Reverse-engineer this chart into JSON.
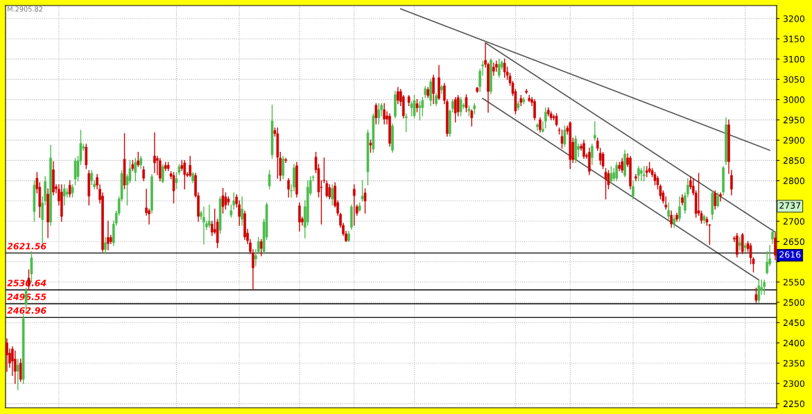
{
  "chart_data": {
    "type": "candlestick",
    "categories": [
      null,
      null,
      null,
      null,
      null,
      null,
      null,
      null,
      null,
      null,
      null,
      null,
      null,
      null,
      null,
      null,
      null,
      null,
      null,
      null,
      null,
      null,
      null,
      null,
      null,
      null,
      null,
      null,
      null,
      null,
      null,
      null,
      null,
      null,
      null,
      null,
      null,
      null,
      null,
      null,
      null,
      null,
      null,
      null,
      null,
      null,
      null,
      null,
      null,
      null,
      null,
      null,
      null,
      null,
      null,
      null,
      null,
      null,
      null,
      null,
      null,
      null,
      null,
      null,
      null,
      null,
      null,
      null,
      null,
      null,
      null,
      null,
      null,
      null,
      null,
      null,
      null,
      null,
      null,
      null,
      null,
      null,
      null,
      null,
      null,
      null,
      null,
      null,
      null,
      null,
      null,
      null,
      null,
      null,
      null,
      null,
      null,
      null,
      null,
      null,
      null,
      null,
      null,
      null,
      null,
      null,
      null,
      null,
      null,
      null,
      null,
      null,
      null,
      null,
      null,
      null,
      null,
      null,
      null,
      null,
      null,
      null,
      null,
      null,
      null,
      null,
      null,
      null,
      null,
      null,
      null,
      null,
      null,
      null,
      null,
      null,
      null,
      null,
      null,
      null,
      null,
      null,
      null,
      null,
      null,
      null,
      null,
      null,
      null,
      null,
      null,
      null,
      null,
      null,
      null,
      null,
      null,
      null,
      null,
      null,
      null,
      null,
      null,
      null,
      null,
      null,
      null,
      null,
      null,
      null,
      null,
      null,
      null,
      null,
      null,
      null,
      null,
      null,
      null,
      null,
      null,
      null,
      null,
      null,
      null,
      null,
      null,
      null,
      null,
      null,
      null,
      null,
      null,
      null,
      null,
      null,
      null,
      null,
      null,
      null,
      null,
      null,
      null,
      null,
      null,
      null,
      null,
      null,
      null,
      null,
      null,
      null,
      null,
      null,
      null,
      null,
      null,
      null,
      null,
      null,
      null,
      null,
      null,
      null,
      null,
      null,
      null,
      null,
      null,
      null,
      null,
      null,
      null,
      null,
      null,
      null,
      null,
      null,
      null,
      null,
      null,
      null,
      null,
      null,
      null,
      null,
      null,
      null,
      null,
      null,
      null,
      null,
      null,
      null,
      null,
      null,
      null,
      null,
      null,
      null,
      null,
      null,
      null,
      null,
      null,
      null,
      null,
      null,
      null,
      null,
      null,
      null,
      null,
      null,
      null,
      null,
      null,
      null,
      null,
      null,
      null,
      null
    ],
    "ohlc": [
      [
        2400,
        2410,
        2330,
        2370
      ],
      [
        2375,
        2385,
        2340,
        2350
      ],
      [
        2385,
        2390,
        2320,
        2355
      ],
      [
        2360,
        2380,
        2300,
        2330
      ],
      [
        2330,
        2360,
        2285,
        2345
      ],
      [
        2350,
        2360,
        2305,
        2310
      ],
      [
        2310,
        2470,
        2300,
        2460
      ],
      [
        2495,
        2535,
        2480,
        2530
      ],
      [
        2560,
        2580,
        2530,
        2540
      ],
      [
        2570,
        2625,
        2550,
        2610
      ],
      [
        2724,
        2800,
        2700,
        2789
      ],
      [
        2806,
        2820,
        2770,
        2780
      ],
      [
        2784,
        2795,
        2710,
        2736
      ],
      [
        2704,
        2760,
        2647,
        2745
      ],
      [
        2750,
        2810,
        2740,
        2798
      ],
      [
        2767,
        2780,
        2660,
        2698
      ],
      [
        2698,
        2887,
        2690,
        2856
      ],
      [
        2827,
        2847,
        2765,
        2772
      ],
      [
        2785,
        2790,
        2770,
        2780
      ],
      [
        2779,
        2790,
        2740,
        2750
      ],
      [
        2772,
        2790,
        2700,
        2712
      ],
      [
        2762,
        2790,
        2740,
        2780
      ],
      [
        2767,
        2780,
        2760,
        2772
      ],
      [
        2789,
        2800,
        2760,
        2767
      ],
      [
        2770,
        2790,
        2760,
        2784
      ],
      [
        2804,
        2855,
        2790,
        2849
      ],
      [
        2810,
        2860,
        2800,
        2849
      ],
      [
        2849,
        2924,
        2840,
        2892
      ],
      [
        2880,
        2890,
        2875,
        2884
      ],
      [
        2883,
        2890,
        2830,
        2839
      ],
      [
        2818,
        2825,
        2740,
        2762
      ],
      [
        2800,
        2825,
        2790,
        2818
      ],
      [
        2785,
        2800,
        2780,
        2792
      ],
      [
        2808,
        2815,
        2780,
        2789
      ],
      [
        2779,
        2790,
        2745,
        2753
      ],
      [
        2762,
        2770,
        2625,
        2630
      ],
      [
        2630,
        2660,
        2620,
        2647
      ],
      [
        2660,
        2700,
        2630,
        2645
      ],
      [
        2660,
        2665,
        2645,
        2650
      ],
      [
        2647,
        2700,
        2640,
        2693
      ],
      [
        2695,
        2725,
        2690,
        2720
      ],
      [
        2720,
        2760,
        2715,
        2755
      ],
      [
        2755,
        2825,
        2750,
        2818
      ],
      [
        2853,
        2916,
        2780,
        2789
      ],
      [
        2790,
        2815,
        2740,
        2810
      ],
      [
        2800,
        2850,
        2795,
        2830
      ],
      [
        2840,
        2850,
        2825,
        2830
      ],
      [
        2820,
        2855,
        2800,
        2845
      ],
      [
        2849,
        2870,
        2835,
        2839
      ],
      [
        2839,
        2860,
        2830,
        2855
      ],
      [
        2827,
        2835,
        2800,
        2806
      ],
      [
        2733,
        2779,
        2715,
        2721
      ],
      [
        2726,
        2730,
        2693,
        2718
      ],
      [
        2727,
        2815,
        2720,
        2810
      ],
      [
        2861,
        2918,
        2820,
        2844
      ],
      [
        2855,
        2860,
        2815,
        2850
      ],
      [
        2849,
        2855,
        2800,
        2806
      ],
      [
        2798,
        2840,
        2795,
        2835
      ],
      [
        2838,
        2845,
        2825,
        2830
      ],
      [
        2838,
        2845,
        2825,
        2830
      ],
      [
        2817,
        2822,
        2805,
        2811
      ],
      [
        2813,
        2820,
        2745,
        2775
      ],
      [
        2795,
        2820,
        2780,
        2805
      ],
      [
        2821,
        2840,
        2815,
        2835
      ],
      [
        2838,
        2850,
        2825,
        2830
      ],
      [
        2844,
        2850,
        2780,
        2815
      ],
      [
        2816,
        2820,
        2810,
        2813
      ],
      [
        2838,
        2860,
        2810,
        2813
      ],
      [
        2800,
        2820,
        2795,
        2817
      ],
      [
        2813,
        2818,
        2760,
        2763
      ],
      [
        2763,
        2770,
        2700,
        2712
      ],
      [
        2712,
        2725,
        2705,
        2721
      ],
      [
        2698,
        2735,
        2644,
        2710
      ],
      [
        2686,
        2700,
        2680,
        2694
      ],
      [
        2690,
        2740,
        2685,
        2700
      ],
      [
        2693,
        2700,
        2665,
        2673
      ],
      [
        2680,
        2730,
        2670,
        2673
      ],
      [
        2698,
        2705,
        2635,
        2647
      ],
      [
        2678,
        2760,
        2670,
        2755
      ],
      [
        2763,
        2781,
        2720,
        2736
      ],
      [
        2760,
        2770,
        2730,
        2740
      ],
      [
        2755,
        2760,
        2740,
        2747
      ],
      [
        2715,
        2740,
        2710,
        2726
      ],
      [
        2740,
        2770,
        2730,
        2750
      ],
      [
        2760,
        2765,
        2735,
        2743
      ],
      [
        2741,
        2750,
        2690,
        2712
      ],
      [
        2705,
        2760,
        2690,
        2730
      ],
      [
        2719,
        2725,
        2655,
        2661
      ],
      [
        2671,
        2680,
        2645,
        2652
      ],
      [
        2647,
        2655,
        2620,
        2625
      ],
      [
        2621,
        2630,
        2532,
        2585
      ],
      [
        2607,
        2630,
        2590,
        2615
      ],
      [
        2625,
        2660,
        2620,
        2650
      ],
      [
        2650,
        2655,
        2615,
        2633
      ],
      [
        2625,
        2705,
        2620,
        2698
      ],
      [
        2661,
        2745,
        2655,
        2741
      ],
      [
        2787,
        2825,
        2780,
        2815
      ],
      [
        2864,
        2986,
        2855,
        2947
      ],
      [
        2924,
        2930,
        2910,
        2916
      ],
      [
        2916,
        2930,
        2806,
        2858
      ],
      [
        2856,
        2870,
        2800,
        2813
      ],
      [
        2813,
        2860,
        2805,
        2854
      ],
      [
        2852,
        2855,
        2845,
        2850
      ],
      [
        2801,
        2805,
        2760,
        2779
      ],
      [
        2775,
        2790,
        2760,
        2776
      ],
      [
        2784,
        2840,
        2775,
        2832
      ],
      [
        2837,
        2845,
        2760,
        2767
      ],
      [
        2738,
        2745,
        2676,
        2698
      ],
      [
        2706,
        2710,
        2690,
        2698
      ],
      [
        2685,
        2750,
        2659,
        2736
      ],
      [
        2698,
        2800,
        2690,
        2784
      ],
      [
        2769,
        2810,
        2765,
        2801
      ],
      [
        2808,
        2812,
        2800,
        2809
      ],
      [
        2858,
        2870,
        2820,
        2827
      ],
      [
        2830,
        2840,
        2760,
        2772
      ],
      [
        2784,
        2800,
        2693,
        2783
      ],
      [
        2801,
        2856,
        2795,
        2800
      ],
      [
        2793,
        2800,
        2760,
        2763
      ],
      [
        2783,
        2790,
        2755,
        2760
      ],
      [
        2755,
        2790,
        2740,
        2781
      ],
      [
        2787,
        2795,
        2735,
        2738
      ],
      [
        2746,
        2750,
        2715,
        2720
      ],
      [
        2717,
        2720,
        2685,
        2690
      ],
      [
        2690,
        2695,
        2665,
        2669
      ],
      [
        2669,
        2675,
        2650,
        2652
      ],
      [
        2652,
        2675,
        2650,
        2669
      ],
      [
        2685,
        2740,
        2680,
        2736
      ],
      [
        2779,
        2790,
        2690,
        2763
      ],
      [
        2736,
        2740,
        2715,
        2720
      ],
      [
        2727,
        2745,
        2725,
        2738
      ],
      [
        2755,
        2800,
        2750,
        2762
      ],
      [
        2770,
        2780,
        2720,
        2750
      ],
      [
        2822,
        2925,
        2790,
        2918
      ],
      [
        2893,
        2900,
        2870,
        2888
      ],
      [
        2878,
        2965,
        2870,
        2960
      ],
      [
        2986,
        2990,
        2940,
        2955
      ],
      [
        2955,
        2990,
        2940,
        2975
      ],
      [
        2975,
        2990,
        2960,
        2986
      ],
      [
        2975,
        2990,
        2940,
        2952
      ],
      [
        2960,
        2970,
        2940,
        2952
      ],
      [
        2959,
        2965,
        2885,
        2892
      ],
      [
        2875,
        2940,
        2870,
        2935
      ],
      [
        2959,
        3020,
        2955,
        3012
      ],
      [
        3020,
        3030,
        2990,
        2998
      ],
      [
        3020,
        3025,
        2985,
        2995
      ],
      [
        3007,
        3010,
        2955,
        2960
      ],
      [
        2955,
        2965,
        2921,
        2958
      ],
      [
        3007,
        3010,
        2985,
        2993
      ],
      [
        2980,
        2995,
        2960,
        2990
      ],
      [
        2960,
        3010,
        2955,
        2998
      ],
      [
        2990,
        3000,
        2970,
        2980
      ],
      [
        2980,
        2995,
        2950,
        2985
      ],
      [
        2980,
        3005,
        2960,
        2998
      ],
      [
        3012,
        3032,
        3005,
        3027
      ],
      [
        3025,
        3030,
        3005,
        3010
      ],
      [
        2998,
        3050,
        2985,
        3044
      ],
      [
        3054,
        3060,
        2990,
        3015
      ],
      [
        2990,
        3015,
        2985,
        3010
      ],
      [
        3054,
        3084,
        3000,
        3003
      ],
      [
        3024,
        3035,
        3015,
        3032
      ],
      [
        3034,
        3040,
        2990,
        2998
      ],
      [
        2995,
        3000,
        2910,
        2916
      ],
      [
        2916,
        2975,
        2910,
        2972
      ],
      [
        2978,
        3000,
        2970,
        2995
      ],
      [
        3000,
        3005,
        2945,
        2967
      ],
      [
        3005,
        3010,
        2960,
        2970
      ],
      [
        2970,
        3005,
        2960,
        3000
      ],
      [
        2983,
        2990,
        2978,
        2986
      ],
      [
        3005,
        3012,
        2970,
        2980
      ],
      [
        2972,
        2985,
        2960,
        2977
      ],
      [
        2972,
        2975,
        2935,
        2955
      ],
      [
        2977,
        2990,
        2965,
        2985
      ],
      [
        3029,
        3030,
        3018,
        3020
      ],
      [
        3032,
        3075,
        3020,
        3070
      ],
      [
        3083,
        3095,
        3060,
        3086
      ],
      [
        3097,
        3138,
        3080,
        3087
      ],
      [
        3087,
        3090,
        2969,
        3020
      ],
      [
        3020,
        3100,
        3015,
        3097
      ],
      [
        3080,
        3090,
        3060,
        3070
      ],
      [
        3087,
        3095,
        3070,
        3080
      ],
      [
        3060,
        3100,
        3055,
        3087
      ],
      [
        3080,
        3095,
        3075,
        3092
      ],
      [
        3090,
        3100,
        3055,
        3068
      ],
      [
        3068,
        3080,
        3050,
        3060
      ],
      [
        3058,
        3065,
        3035,
        3041
      ],
      [
        3041,
        3045,
        3010,
        3015
      ],
      [
        3020,
        3025,
        2965,
        2972
      ],
      [
        2980,
        2995,
        2975,
        2990
      ],
      [
        3003,
        3010,
        2985,
        2993
      ],
      [
        2995,
        3005,
        2990,
        3000
      ],
      [
        3021,
        3025,
        3015,
        3018
      ],
      [
        3003,
        3010,
        2995,
        2998
      ],
      [
        3000,
        3005,
        2985,
        2993
      ],
      [
        2995,
        3000,
        2950,
        2955
      ],
      [
        2933,
        2940,
        2925,
        2938
      ],
      [
        2950,
        2955,
        2920,
        2926
      ],
      [
        2922,
        2945,
        2920,
        2927
      ],
      [
        2947,
        2980,
        2930,
        2969
      ],
      [
        2974,
        2980,
        2960,
        2965
      ],
      [
        2965,
        2970,
        2950,
        2955
      ],
      [
        2958,
        2962,
        2950,
        2955
      ],
      [
        2959,
        2965,
        2935,
        2938
      ],
      [
        2925,
        2930,
        2915,
        2924
      ],
      [
        2909,
        2925,
        2880,
        2892
      ],
      [
        2890,
        2935,
        2885,
        2925
      ],
      [
        2930,
        2935,
        2915,
        2922
      ],
      [
        2943,
        2945,
        2830,
        2852
      ],
      [
        2895,
        2905,
        2845,
        2852
      ],
      [
        2852,
        2910,
        2845,
        2903
      ],
      [
        2877,
        2890,
        2860,
        2885
      ],
      [
        2885,
        2890,
        2875,
        2880
      ],
      [
        2892,
        2900,
        2855,
        2860
      ],
      [
        2862,
        2866,
        2855,
        2860
      ],
      [
        2870,
        2880,
        2815,
        2823
      ],
      [
        2857,
        2890,
        2840,
        2885
      ],
      [
        2905,
        2945,
        2900,
        2912
      ],
      [
        2898,
        2905,
        2875,
        2880
      ],
      [
        2868,
        2880,
        2840,
        2850
      ],
      [
        2866,
        2870,
        2830,
        2836
      ],
      [
        2821,
        2830,
        2755,
        2804
      ],
      [
        2818,
        2825,
        2780,
        2790
      ],
      [
        2800,
        2835,
        2795,
        2818
      ],
      [
        2806,
        2830,
        2800,
        2820
      ],
      [
        2806,
        2845,
        2800,
        2838
      ],
      [
        2838,
        2845,
        2825,
        2830
      ],
      [
        2847,
        2855,
        2820,
        2826
      ],
      [
        2813,
        2875,
        2810,
        2866
      ],
      [
        2856,
        2866,
        2835,
        2840
      ],
      [
        2856,
        2860,
        2780,
        2787
      ],
      [
        2762,
        2800,
        2755,
        2786
      ],
      [
        2810,
        2815,
        2800,
        2806
      ],
      [
        2813,
        2835,
        2800,
        2830
      ],
      [
        2818,
        2830,
        2800,
        2825
      ],
      [
        2812,
        2835,
        2800,
        2815
      ],
      [
        2825,
        2835,
        2810,
        2820
      ],
      [
        2830,
        2845,
        2820,
        2823
      ],
      [
        2825,
        2830,
        2810,
        2815
      ],
      [
        2815,
        2820,
        2790,
        2800
      ],
      [
        2806,
        2810,
        2780,
        2790
      ],
      [
        2787,
        2790,
        2755,
        2763
      ],
      [
        2770,
        2775,
        2745,
        2750
      ],
      [
        2740,
        2760,
        2730,
        2735
      ],
      [
        2712,
        2745,
        2705,
        2727
      ],
      [
        2715,
        2725,
        2685,
        2693
      ],
      [
        2693,
        2715,
        2685,
        2706
      ],
      [
        2715,
        2720,
        2700,
        2705
      ],
      [
        2707,
        2760,
        2700,
        2736
      ],
      [
        2758,
        2765,
        2740,
        2746
      ],
      [
        2727,
        2770,
        2720,
        2763
      ],
      [
        2767,
        2805,
        2760,
        2789
      ],
      [
        2800,
        2810,
        2780,
        2785
      ],
      [
        2787,
        2805,
        2765,
        2770
      ],
      [
        2770,
        2775,
        2710,
        2719
      ],
      [
        2726,
        2818,
        2715,
        2720
      ],
      [
        2719,
        2725,
        2695,
        2702
      ],
      [
        2702,
        2715,
        2695,
        2712
      ],
      [
        2705,
        2710,
        2690,
        2698
      ],
      [
        2691,
        2692,
        2643,
        2690
      ],
      [
        2717,
        2775,
        2705,
        2769
      ],
      [
        2769,
        2775,
        2730,
        2738
      ],
      [
        2738,
        2770,
        2735,
        2762
      ],
      [
        2766,
        2770,
        2750,
        2762
      ],
      [
        2772,
        2835,
        2765,
        2832
      ],
      [
        2847,
        2955,
        2840,
        2938
      ],
      [
        2938,
        2950,
        2818,
        2847
      ],
      [
        2813,
        2825,
        2765,
        2779
      ],
      [
        2658,
        2662,
        2650,
        2656
      ],
      [
        2664,
        2670,
        2612,
        2618
      ],
      [
        2640,
        2660,
        2630,
        2647
      ],
      [
        2667,
        2670,
        2620,
        2625
      ],
      [
        2635,
        2645,
        2625,
        2640
      ],
      [
        2645,
        2650,
        2625,
        2632
      ],
      [
        2640,
        2645,
        2595,
        2610
      ],
      [
        2607,
        2610,
        2575,
        2595
      ],
      [
        2519,
        2535,
        2500,
        2505
      ],
      [
        2505,
        2555,
        2500,
        2541
      ],
      [
        2530,
        2555,
        2520,
        2537
      ],
      [
        2539,
        2555,
        2520,
        2549
      ],
      [
        2573,
        2625,
        2570,
        2599
      ],
      [
        2595,
        2640,
        2590,
        2607
      ],
      [
        2656,
        2680,
        2645,
        2673
      ],
      [
        2659,
        2670,
        2605,
        2616
      ]
    ],
    "series": [
      {
        "type": "line",
        "color": "#555555",
        "values": [
          null,
          null,
          null,
          null,
          null,
          null,
          null,
          null,
          null,
          null,
          null,
          null,
          null,
          null,
          null,
          null,
          null,
          null,
          null,
          null,
          null,
          null,
          null,
          null,
          null,
          null,
          null,
          null,
          null,
          null,
          null,
          null,
          null,
          null,
          null,
          null,
          null,
          null,
          null,
          null,
          null,
          null,
          null,
          null,
          null,
          null,
          null,
          null,
          null,
          null,
          null,
          null,
          null,
          null,
          null,
          null,
          null,
          null,
          null,
          null,
          null,
          null,
          null,
          null,
          null,
          null,
          null,
          null,
          null,
          null,
          null,
          null,
          null,
          null,
          null,
          null,
          null,
          null,
          null,
          null,
          null,
          null,
          null,
          null,
          null,
          null,
          null,
          null,
          null,
          null,
          null,
          null,
          null,
          null,
          null,
          null,
          null,
          null,
          null,
          null,
          null,
          null,
          null,
          null,
          null,
          null,
          null,
          null,
          null,
          null,
          null,
          null,
          null,
          null,
          null,
          null,
          null,
          null,
          null,
          null,
          null,
          null,
          null,
          null,
          null,
          null,
          null,
          null,
          null,
          null,
          null,
          null,
          null,
          null,
          null,
          null,
          null,
          null,
          null,
          null,
          null,
          null,
          null,
          null,
          3224,
          null,
          null,
          null,
          null,
          null,
          null,
          null,
          null,
          null,
          null,
          null,
          null,
          null,
          null,
          null,
          null,
          null,
          null,
          null,
          null,
          null,
          null,
          null,
          null,
          null,
          null,
          null,
          null,
          null,
          null,
          null,
          null,
          null,
          null,
          null,
          null,
          null,
          null,
          null,
          null,
          null,
          null,
          null,
          null,
          null,
          null,
          null,
          null,
          null,
          null,
          null,
          null,
          null,
          null,
          null,
          null,
          null,
          null,
          null,
          null,
          null,
          null,
          null,
          null,
          null,
          null,
          null,
          null,
          null,
          null,
          null,
          null,
          null,
          null,
          null,
          null,
          null,
          null,
          null,
          null,
          null,
          null,
          null,
          null,
          null,
          null,
          null,
          null,
          null,
          null,
          null,
          null,
          null,
          null,
          null,
          null,
          null,
          null,
          null,
          null,
          null,
          null,
          null,
          null,
          null,
          null,
          null,
          null,
          null,
          null,
          null,
          null,
          null,
          null,
          null,
          null,
          null,
          null,
          null,
          null,
          null,
          null,
          null,
          null,
          null,
          null,
          null,
          null,
          null,
          null,
          null,
          null,
          null,
          null,
          2875,
          null,
          null
        ]
      },
      {
        "type": "line",
        "color": "#555555",
        "values": [
          null,
          null,
          null,
          null,
          null,
          null,
          null,
          null,
          null,
          null,
          null,
          null,
          null,
          null,
          null,
          null,
          null,
          null,
          null,
          null,
          null,
          null,
          null,
          null,
          null,
          null,
          null,
          null,
          null,
          null,
          null,
          null,
          null,
          null,
          null,
          null,
          null,
          null,
          null,
          null,
          null,
          null,
          null,
          null,
          null,
          null,
          null,
          null,
          null,
          null,
          null,
          null,
          null,
          null,
          null,
          null,
          null,
          null,
          null,
          null,
          null,
          null,
          null,
          null,
          null,
          null,
          null,
          null,
          null,
          null,
          null,
          null,
          null,
          null,
          null,
          null,
          null,
          null,
          null,
          null,
          null,
          null,
          null,
          null,
          null,
          null,
          null,
          null,
          null,
          null,
          null,
          null,
          null,
          null,
          null,
          null,
          null,
          null,
          null,
          null,
          null,
          null,
          null,
          null,
          null,
          null,
          null,
          null,
          null,
          null,
          null,
          null,
          null,
          null,
          null,
          null,
          null,
          null,
          null,
          null,
          null,
          null,
          null,
          null,
          null,
          null,
          null,
          null,
          null,
          null,
          null,
          null,
          null,
          null,
          null,
          null,
          null,
          null,
          null,
          null,
          null,
          null,
          null,
          null,
          null,
          null,
          null,
          null,
          null,
          null,
          null,
          null,
          null,
          null,
          null,
          null,
          null,
          null,
          null,
          null,
          null,
          null,
          null,
          null,
          null,
          null,
          null,
          null,
          null,
          null,
          null,
          null,
          null,
          null,
          null,
          3140,
          null,
          null,
          null,
          null,
          null,
          null,
          null,
          null,
          null,
          null,
          null,
          null,
          null,
          null,
          null,
          null,
          null,
          null,
          null,
          null,
          null,
          null,
          null,
          null,
          null,
          null,
          null,
          null,
          null,
          null,
          null,
          null,
          null,
          null,
          null,
          null,
          null,
          null,
          null,
          null,
          null,
          null,
          null,
          null,
          null,
          null,
          null,
          null,
          null,
          null,
          null,
          null,
          null,
          null,
          null,
          null,
          null,
          null,
          null,
          null,
          null,
          null,
          null,
          null,
          null,
          null,
          null,
          null,
          null,
          null,
          null,
          null,
          null,
          null,
          null,
          null,
          null,
          null,
          null,
          null,
          null,
          null,
          null,
          null,
          null,
          null,
          null,
          null,
          null,
          null,
          null,
          null,
          null,
          null,
          null,
          null,
          null,
          null,
          null,
          null,
          null,
          null,
          null,
          null,
          null,
          2673
        ]
      },
      {
        "type": "line",
        "color": "#555555",
        "values": [
          null,
          null,
          null,
          null,
          null,
          null,
          null,
          null,
          null,
          null,
          null,
          null,
          null,
          null,
          null,
          null,
          null,
          null,
          null,
          null,
          null,
          null,
          null,
          null,
          null,
          null,
          null,
          null,
          null,
          null,
          null,
          null,
          null,
          null,
          null,
          null,
          null,
          null,
          null,
          null,
          null,
          null,
          null,
          null,
          null,
          null,
          null,
          null,
          null,
          null,
          null,
          null,
          null,
          null,
          null,
          null,
          null,
          null,
          null,
          null,
          null,
          null,
          null,
          null,
          null,
          null,
          null,
          null,
          null,
          null,
          null,
          null,
          null,
          null,
          null,
          null,
          null,
          null,
          null,
          null,
          null,
          null,
          null,
          null,
          null,
          null,
          null,
          null,
          null,
          null,
          null,
          null,
          null,
          null,
          null,
          null,
          null,
          null,
          null,
          null,
          null,
          null,
          null,
          null,
          null,
          null,
          null,
          null,
          null,
          null,
          null,
          null,
          null,
          null,
          null,
          null,
          null,
          null,
          null,
          null,
          null,
          null,
          null,
          null,
          null,
          null,
          null,
          null,
          null,
          null,
          null,
          null,
          null,
          null,
          null,
          null,
          null,
          null,
          null,
          null,
          null,
          null,
          null,
          null,
          null,
          null,
          null,
          null,
          null,
          null,
          null,
          null,
          null,
          null,
          null,
          null,
          null,
          null,
          null,
          null,
          null,
          null,
          null,
          null,
          null,
          null,
          null,
          null,
          null,
          null,
          null,
          null,
          null,
          null,
          3003,
          null,
          null,
          null,
          null,
          null,
          null,
          null,
          null,
          null,
          null,
          null,
          null,
          null,
          null,
          null,
          null,
          null,
          null,
          null,
          null,
          null,
          null,
          null,
          null,
          null,
          null,
          null,
          null,
          null,
          null,
          null,
          null,
          null,
          null,
          null,
          null,
          null,
          null,
          null,
          null,
          null,
          null,
          null,
          null,
          null,
          null,
          null,
          null,
          null,
          null,
          null,
          null,
          null,
          null,
          null,
          null,
          null,
          null,
          null,
          null,
          null,
          null,
          null,
          null,
          null,
          null,
          null,
          null,
          null,
          null,
          null,
          null,
          null,
          null,
          null,
          null,
          null,
          null,
          null,
          null,
          null,
          null,
          null,
          null,
          null,
          null,
          null,
          null,
          null,
          null,
          null,
          null,
          null,
          null,
          null,
          null,
          null,
          null,
          null,
          null,
          2555,
          null,
          null,
          null,
          null,
          null,
          null
        ]
      }
    ],
    "ylim": [
      2240,
      3232
    ],
    "yticks": [
      2250,
      2300,
      2350,
      2400,
      2450,
      2500,
      2550,
      {
        "value": 2600,
        "label": null
      },
      2650,
      2700,
      {
        "value": 2750,
        "label": null
      },
      2800,
      2850,
      2900,
      2950,
      3000,
      3050,
      3100,
      3150,
      3200
    ],
    "grid": true,
    "ref_lines": [
      {
        "axis": "y",
        "value": 2621.56,
        "label": "2621.56",
        "color": "#000000"
      },
      {
        "axis": "y",
        "value": 2530.64,
        "label": "2530.64",
        "color": "#000000"
      },
      {
        "axis": "y",
        "value": 2496.55,
        "label": "2496.55",
        "color": "#000000"
      },
      {
        "axis": "y",
        "value": 2462.96,
        "label": "2462.96",
        "color": "#000000"
      }
    ],
    "annotations": [
      {
        "text": "2737",
        "y": 2737
      },
      {
        "text": "2616",
        "y": 2616
      },
      "M.2905.82"
    ]
  }
}
